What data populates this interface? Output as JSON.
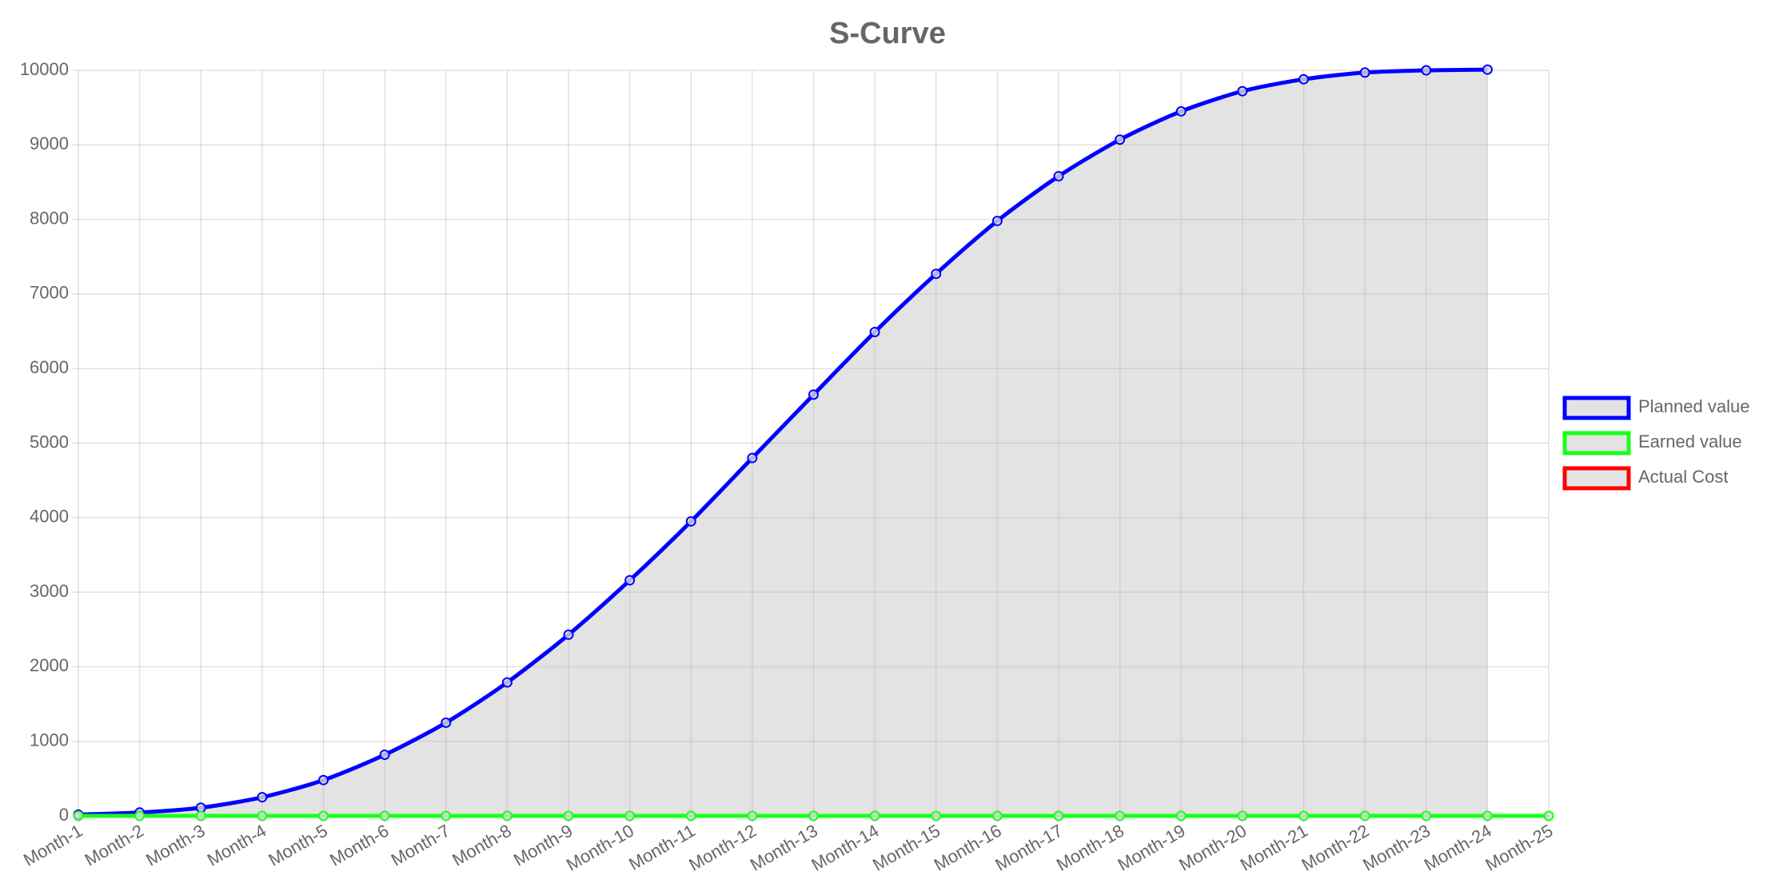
{
  "chart_data": {
    "type": "line",
    "title": "S-Curve",
    "categories": [
      "Month-1",
      "Month-2",
      "Month-3",
      "Month-4",
      "Month-5",
      "Month-6",
      "Month-7",
      "Month-8",
      "Month-9",
      "Month-10",
      "Month-11",
      "Month-12",
      "Month-13",
      "Month-14",
      "Month-15",
      "Month-16",
      "Month-17",
      "Month-18",
      "Month-19",
      "Month-20",
      "Month-21",
      "Month-22",
      "Month-23",
      "Month-24",
      "Month-25"
    ],
    "series": [
      {
        "name": "Planned value",
        "color": "#0000ff",
        "values": [
          18,
          45,
          110,
          250,
          480,
          820,
          1250,
          1790,
          2430,
          3160,
          3950,
          4800,
          5650,
          6490,
          7270,
          7980,
          8580,
          9070,
          9450,
          9720,
          9880,
          9970,
          10000,
          10010,
          null
        ]
      },
      {
        "name": "Earned value",
        "color": "#1aff1a",
        "values": [
          0,
          0,
          0,
          0,
          0,
          0,
          0,
          0,
          0,
          0,
          0,
          0,
          0,
          0,
          0,
          0,
          0,
          0,
          0,
          0,
          0,
          0,
          0,
          0,
          0
        ]
      },
      {
        "name": "Actual Cost",
        "color": "#ff0000",
        "values": [
          null,
          null,
          null,
          null,
          null,
          null,
          null,
          null,
          null,
          null,
          null,
          null,
          null,
          null,
          null,
          null,
          null,
          null,
          null,
          null,
          null,
          null,
          null,
          null,
          null
        ]
      }
    ],
    "fill_color": "rgba(180,180,180,0.37)",
    "ylim": [
      0,
      10000
    ],
    "yticks": [
      0,
      1000,
      2000,
      3000,
      4000,
      5000,
      6000,
      7000,
      8000,
      9000,
      10000
    ],
    "grid": true,
    "legend": "right"
  }
}
